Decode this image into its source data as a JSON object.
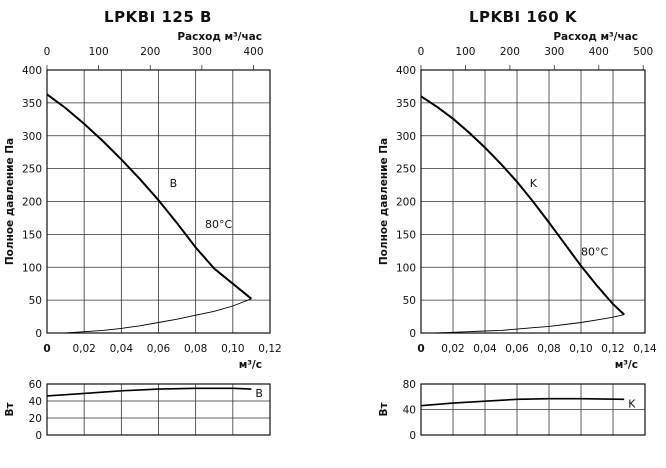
{
  "chart_data": [
    {
      "type": "line",
      "title": "LPKBI 125 B",
      "top_axis_label": "Расход м³/час",
      "top_ticks": [
        "0",
        "100",
        "200",
        "300",
        "400"
      ],
      "top_tick_values": [
        0,
        100,
        200,
        300,
        400
      ],
      "xlabel": "м³/с",
      "ylabel": "Полное давление Па",
      "x_ticks": [
        "0",
        "0,02",
        "0,04",
        "0,06",
        "0,08",
        "0,10",
        "0,12"
      ],
      "x_tick_values": [
        0,
        0.02,
        0.04,
        0.06,
        0.08,
        0.1,
        0.12
      ],
      "y_ticks": [
        "0",
        "50",
        "100",
        "150",
        "200",
        "250",
        "300",
        "350",
        "400"
      ],
      "xlim": [
        0,
        0.12
      ],
      "ylim": [
        0,
        400
      ],
      "grid": true,
      "series": [
        {
          "name": "B",
          "x": [
            0,
            0.01,
            0.02,
            0.03,
            0.04,
            0.05,
            0.06,
            0.07,
            0.08,
            0.09,
            0.1,
            0.11
          ],
          "y": [
            363,
            342,
            318,
            292,
            264,
            234,
            202,
            167,
            130,
            98,
            75,
            52
          ]
        },
        {
          "x": [
            0.01,
            0.02,
            0.03,
            0.04,
            0.05,
            0.06,
            0.07,
            0.08,
            0.09,
            0.1,
            0.11
          ],
          "y": [
            0,
            2,
            4,
            7,
            11,
            16,
            21,
            27,
            33,
            41,
            52
          ]
        }
      ],
      "annotations": [
        {
          "text": "B",
          "x": 0.066,
          "y": 222
        },
        {
          "text": "80°C",
          "x": 0.085,
          "y": 160
        }
      ],
      "power_chart": {
        "ylabel": "Вт",
        "y_ticks": [
          "0",
          "20",
          "40",
          "60"
        ],
        "ylim": [
          0,
          60
        ],
        "series_name": "B",
        "x": [
          0,
          0.02,
          0.04,
          0.06,
          0.08,
          0.1,
          0.11
        ],
        "y": [
          46,
          49,
          52,
          54,
          55,
          55,
          54
        ]
      }
    },
    {
      "type": "line",
      "title": "LPKBI 160 K",
      "top_axis_label": "Расход м³/час",
      "top_ticks": [
        "0",
        "100",
        "200",
        "300",
        "400",
        "500"
      ],
      "top_tick_values": [
        0,
        100,
        200,
        300,
        400,
        500
      ],
      "xlabel": "м³/с",
      "ylabel": "Полное давление Па",
      "x_ticks": [
        "0",
        "0,02",
        "0,04",
        "0,06",
        "0,08",
        "0,10",
        "0,12",
        "0,14"
      ],
      "x_tick_values": [
        0,
        0.02,
        0.04,
        0.06,
        0.08,
        0.1,
        0.12,
        0.14
      ],
      "y_ticks": [
        "0",
        "50",
        "100",
        "150",
        "200",
        "250",
        "300",
        "350",
        "400"
      ],
      "xlim": [
        0,
        0.14
      ],
      "ylim": [
        0,
        400
      ],
      "grid": true,
      "series": [
        {
          "name": "K",
          "x": [
            0,
            0.01,
            0.02,
            0.03,
            0.04,
            0.05,
            0.06,
            0.07,
            0.08,
            0.09,
            0.1,
            0.11,
            0.12,
            0.127
          ],
          "y": [
            360,
            344,
            326,
            305,
            282,
            257,
            230,
            200,
            168,
            135,
            102,
            72,
            44,
            28
          ]
        },
        {
          "x": [
            0.01,
            0.02,
            0.03,
            0.04,
            0.05,
            0.06,
            0.07,
            0.08,
            0.09,
            0.1,
            0.11,
            0.12,
            0.127
          ],
          "y": [
            0,
            1,
            2,
            3,
            4,
            6,
            8,
            10,
            13,
            16,
            20,
            24,
            28
          ]
        }
      ],
      "annotations": [
        {
          "text": "K",
          "x": 0.068,
          "y": 222
        },
        {
          "text": "80°C",
          "x": 0.1,
          "y": 118
        }
      ],
      "power_chart": {
        "ylabel": "Вт",
        "y_ticks": [
          "0",
          "40",
          "80"
        ],
        "ylim": [
          0,
          80
        ],
        "series_name": "K",
        "x": [
          0,
          0.02,
          0.04,
          0.06,
          0.08,
          0.1,
          0.127
        ],
        "y": [
          46,
          50,
          53,
          56,
          57,
          57,
          56
        ]
      }
    }
  ]
}
